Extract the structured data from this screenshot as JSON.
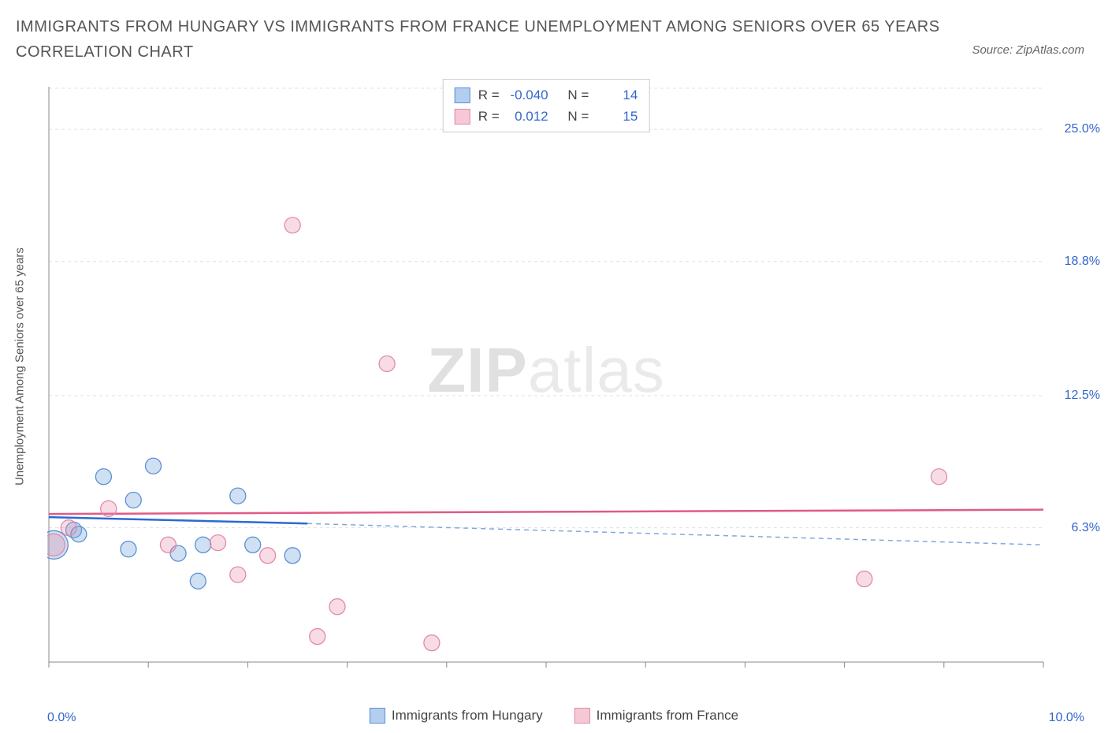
{
  "title": "IMMIGRANTS FROM HUNGARY VS IMMIGRANTS FROM FRANCE UNEMPLOYMENT AMONG SENIORS OVER 65 YEARS CORRELATION CHART",
  "source": "Source: ZipAtlas.com",
  "y_axis_label": "Unemployment Among Seniors over 65 years",
  "watermark": {
    "zip": "ZIP",
    "atlas": "atlas"
  },
  "chart": {
    "type": "scatter",
    "xlim": [
      0.0,
      10.0
    ],
    "ylim": [
      0.0,
      27.0
    ],
    "x_ticks": {
      "positions": [
        0.0,
        1.0,
        2.0,
        3.0,
        4.0,
        5.0,
        6.0,
        7.0,
        8.0,
        9.0,
        10.0
      ]
    },
    "x_tick_labels": {
      "left": "0.0%",
      "right": "10.0%"
    },
    "y_ticks": [
      {
        "value": 6.3,
        "label": "6.3%"
      },
      {
        "value": 12.5,
        "label": "12.5%"
      },
      {
        "value": 18.8,
        "label": "18.8%"
      },
      {
        "value": 25.0,
        "label": "25.0%"
      }
    ],
    "background_color": "#ffffff",
    "grid_color": "#e0e0e0",
    "axis_color": "#888888",
    "label_color": "#3266cc",
    "series": [
      {
        "id": "hungary",
        "label": "Immigrants from Hungary",
        "swatch_fill": "#b4cef0",
        "swatch_border": "#5a8fd6",
        "marker_fill": "rgba(120,165,220,0.35)",
        "marker_stroke": "#5a8fd6",
        "marker_radius": 10,
        "R": "-0.040",
        "N": "14",
        "trend": {
          "solid": {
            "x1": 0.0,
            "y1": 6.8,
            "x2": 2.6,
            "y2": 6.5,
            "color": "#2a6bd4",
            "width": 2.5
          },
          "dashed": {
            "x1": 2.6,
            "y1": 6.5,
            "x2": 10.0,
            "y2": 5.5,
            "color": "#7fa8e0",
            "width": 1.5,
            "dash": "6 5"
          }
        },
        "points": [
          {
            "x": 0.05,
            "y": 5.5,
            "r": 18
          },
          {
            "x": 0.25,
            "y": 6.2
          },
          {
            "x": 0.3,
            "y": 6.0
          },
          {
            "x": 0.55,
            "y": 8.7
          },
          {
            "x": 0.8,
            "y": 5.3
          },
          {
            "x": 0.85,
            "y": 7.6
          },
          {
            "x": 1.05,
            "y": 9.2
          },
          {
            "x": 1.3,
            "y": 5.1
          },
          {
            "x": 1.5,
            "y": 3.8
          },
          {
            "x": 1.55,
            "y": 5.5
          },
          {
            "x": 1.9,
            "y": 7.8
          },
          {
            "x": 2.05,
            "y": 5.5
          },
          {
            "x": 2.45,
            "y": 5.0
          }
        ]
      },
      {
        "id": "france",
        "label": "Immigrants from France",
        "swatch_fill": "#f6c8d6",
        "swatch_border": "#e389a7",
        "marker_fill": "rgba(230,140,170,0.30)",
        "marker_stroke": "#e389a7",
        "marker_radius": 10,
        "R": "0.012",
        "N": "15",
        "trend": {
          "solid": {
            "x1": 0.0,
            "y1": 6.95,
            "x2": 10.0,
            "y2": 7.15,
            "color": "#e05a88",
            "width": 2.5
          }
        },
        "points": [
          {
            "x": 0.05,
            "y": 5.5,
            "r": 14
          },
          {
            "x": 0.2,
            "y": 6.3
          },
          {
            "x": 0.6,
            "y": 7.2
          },
          {
            "x": 1.2,
            "y": 5.5
          },
          {
            "x": 1.7,
            "y": 5.6
          },
          {
            "x": 1.9,
            "y": 4.1
          },
          {
            "x": 2.2,
            "y": 5.0
          },
          {
            "x": 2.45,
            "y": 20.5
          },
          {
            "x": 2.7,
            "y": 1.2
          },
          {
            "x": 2.9,
            "y": 2.6
          },
          {
            "x": 3.4,
            "y": 14.0
          },
          {
            "x": 3.85,
            "y": 0.9
          },
          {
            "x": 8.2,
            "y": 3.9
          },
          {
            "x": 8.95,
            "y": 8.7
          }
        ]
      }
    ]
  },
  "legend_top": {
    "R_label": "R =",
    "N_label": "N ="
  }
}
